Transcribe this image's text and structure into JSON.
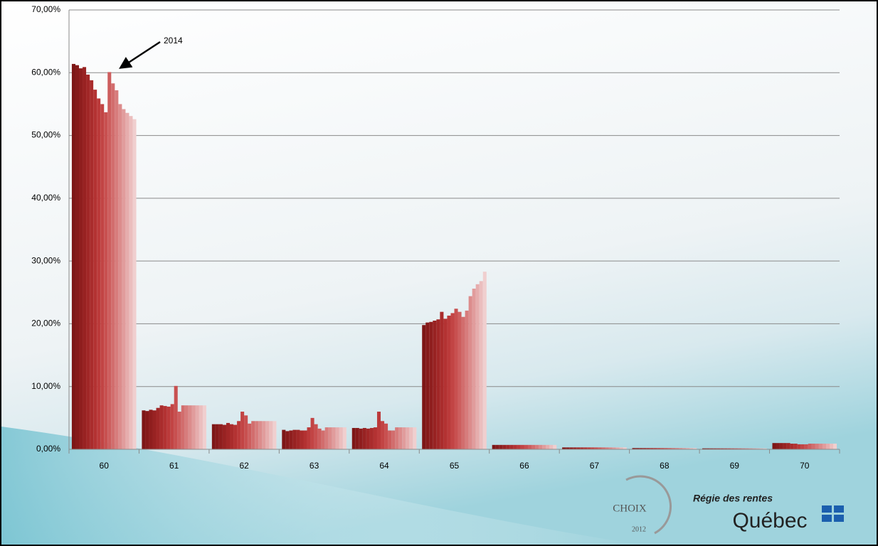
{
  "chart_data": {
    "type": "bar",
    "categories": [
      "60",
      "61",
      "62",
      "63",
      "64",
      "65",
      "66",
      "67",
      "68",
      "69",
      "70"
    ],
    "ylim": [
      0,
      70
    ],
    "yticks": [
      {
        "value": 0,
        "label": "0,00%"
      },
      {
        "value": 10,
        "label": "10,00%"
      },
      {
        "value": 20,
        "label": "20,00%"
      },
      {
        "value": 30,
        "label": "30,00%"
      },
      {
        "value": 40,
        "label": "40,00%"
      },
      {
        "value": 50,
        "label": "50,00%"
      },
      {
        "value": 60,
        "label": "60,00%"
      },
      {
        "value": 70,
        "label": "70,00%"
      }
    ],
    "grid": true,
    "annotations": [
      {
        "text": "2014"
      }
    ],
    "series": [
      {
        "color": "#7d1616",
        "values": [
          61.4,
          6.2,
          4.0,
          3.1,
          3.4,
          19.8,
          0.7,
          0.3,
          0.2,
          0.15,
          1.0
        ]
      },
      {
        "color": "#861a1a",
        "values": [
          61.2,
          6.1,
          4.0,
          2.9,
          3.4,
          20.2,
          0.7,
          0.3,
          0.2,
          0.15,
          1.0
        ]
      },
      {
        "color": "#8f1e1e",
        "values": [
          60.7,
          6.3,
          4.0,
          3.0,
          3.3,
          20.3,
          0.7,
          0.3,
          0.2,
          0.15,
          1.0
        ]
      },
      {
        "color": "#982222",
        "values": [
          60.9,
          6.2,
          3.9,
          3.1,
          3.4,
          20.5,
          0.7,
          0.3,
          0.2,
          0.15,
          1.0
        ]
      },
      {
        "color": "#a12727",
        "values": [
          59.7,
          6.6,
          4.2,
          3.1,
          3.3,
          20.7,
          0.7,
          0.3,
          0.2,
          0.15,
          1.0
        ]
      },
      {
        "color": "#aa2c2c",
        "values": [
          58.8,
          7.0,
          4.0,
          3.0,
          3.4,
          21.9,
          0.7,
          0.3,
          0.2,
          0.15,
          0.9
        ]
      },
      {
        "color": "#b33232",
        "values": [
          57.3,
          6.9,
          3.9,
          3.0,
          3.5,
          20.8,
          0.7,
          0.3,
          0.2,
          0.15,
          0.9
        ]
      },
      {
        "color": "#bb3a3a",
        "values": [
          55.9,
          6.8,
          4.5,
          3.5,
          6.0,
          21.3,
          0.7,
          0.3,
          0.2,
          0.15,
          0.8
        ]
      },
      {
        "color": "#c24444",
        "values": [
          55.0,
          7.2,
          6.0,
          5.0,
          4.5,
          21.7,
          0.7,
          0.3,
          0.2,
          0.15,
          0.8
        ]
      },
      {
        "color": "#c85050",
        "values": [
          53.7,
          10.1,
          5.4,
          4.0,
          4.1,
          22.4,
          0.7,
          0.3,
          0.2,
          0.15,
          0.8
        ]
      },
      {
        "color": "#cd5e5e",
        "values": [
          60.1,
          6.0,
          4.1,
          3.3,
          3.0,
          21.9,
          0.7,
          0.3,
          0.2,
          0.15,
          0.9
        ]
      },
      {
        "color": "#d26d6d",
        "values": [
          58.3,
          7.0,
          4.5,
          3.0,
          3.0,
          21.1,
          0.7,
          0.3,
          0.2,
          0.15,
          0.9
        ]
      },
      {
        "color": "#d77c7c",
        "values": [
          57.2,
          7.0,
          4.5,
          3.5,
          3.5,
          22.1,
          0.7,
          0.3,
          0.2,
          0.15,
          0.9
        ]
      },
      {
        "color": "#dc8c8c",
        "values": [
          55.0,
          7.0,
          4.5,
          3.5,
          3.5,
          24.4,
          0.7,
          0.3,
          0.2,
          0.15,
          0.9
        ]
      },
      {
        "color": "#e19c9c",
        "values": [
          54.2,
          7.0,
          4.5,
          3.5,
          3.5,
          25.6,
          0.7,
          0.3,
          0.2,
          0.15,
          0.9
        ]
      },
      {
        "color": "#e6adad",
        "values": [
          53.6,
          7.0,
          4.5,
          3.5,
          3.5,
          26.3,
          0.7,
          0.3,
          0.2,
          0.15,
          0.9
        ]
      },
      {
        "color": "#ebbebe",
        "values": [
          53.1,
          7.0,
          4.5,
          3.5,
          3.5,
          26.8,
          0.7,
          0.3,
          0.2,
          0.15,
          0.9
        ]
      },
      {
        "color": "#f0cfcf",
        "values": [
          52.6,
          7.0,
          4.5,
          3.5,
          3.5,
          28.3,
          0.7,
          0.3,
          0.2,
          0.15,
          0.9
        ]
      }
    ]
  },
  "branding": {
    "agency": "Régie des rentes",
    "province": "Québec",
    "badge": "CHOIX",
    "badge_year": "2012"
  }
}
